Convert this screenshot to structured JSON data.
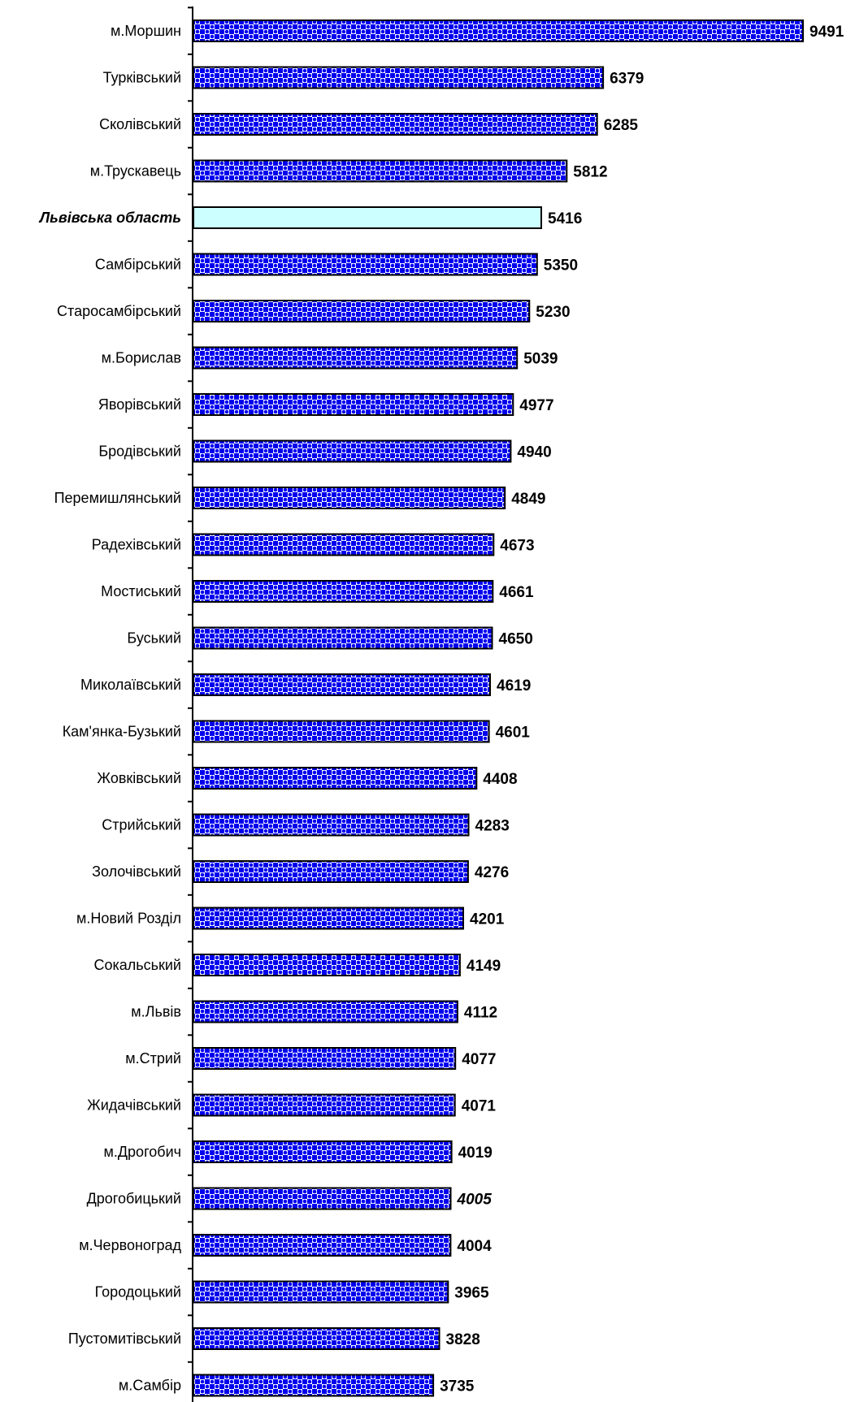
{
  "chart_data": {
    "type": "bar",
    "orientation": "horizontal",
    "title": "",
    "xlabel": "",
    "ylabel": "",
    "xlim": [
      0,
      9491
    ],
    "grid": false,
    "legend": "none",
    "colors": {
      "pattern_primary": "#0000ee",
      "pattern_secondary": "#ffffff",
      "highlight_fill": "#ccffff",
      "bar_border": "#000000",
      "axis": "#000000"
    },
    "categories": [
      "м.Моршин",
      "Турківський",
      "Сколівський",
      "м.Трускавець",
      "Львівська область",
      "Самбірський",
      "Старосамбірський",
      "м.Борислав",
      "Яворівський",
      "Бродівський",
      "Перемишлянський",
      "Радехівський",
      "Мостиський",
      "Буський",
      "Миколаївський",
      "Кам'янка-Бузький",
      "Жовківський",
      "Стрийський",
      "Золочівський",
      "м.Новий Розділ",
      "Сокальський",
      "м.Львів",
      "м.Стрий",
      "Жидачівський",
      "м.Дрогобич",
      "Дрогобицький",
      "м.Червоноград",
      "Городоцький",
      "Пустомитівський",
      "м.Самбір"
    ],
    "values": [
      9491,
      6379,
      6285,
      5812,
      5416,
      5350,
      5230,
      5039,
      4977,
      4940,
      4849,
      4673,
      4661,
      4650,
      4619,
      4601,
      4408,
      4283,
      4276,
      4201,
      4149,
      4112,
      4077,
      4071,
      4019,
      4005,
      4004,
      3965,
      3828,
      3735
    ],
    "value_labels": [
      "9491",
      "6379",
      "6285",
      "5812",
      "5416",
      "5350",
      "5230",
      "5039",
      "4977",
      "4940",
      "4849",
      "4673",
      "4661",
      "4650",
      "4619",
      "4601",
      "4408",
      "4283",
      "4276",
      "4201",
      "4149",
      "4112",
      "4077",
      "4071",
      "4019",
      "4005",
      "4004",
      "3965",
      "3828",
      "3735"
    ],
    "highlight_category": "Львівська область",
    "italic_value_category": "Дрогобицький"
  }
}
